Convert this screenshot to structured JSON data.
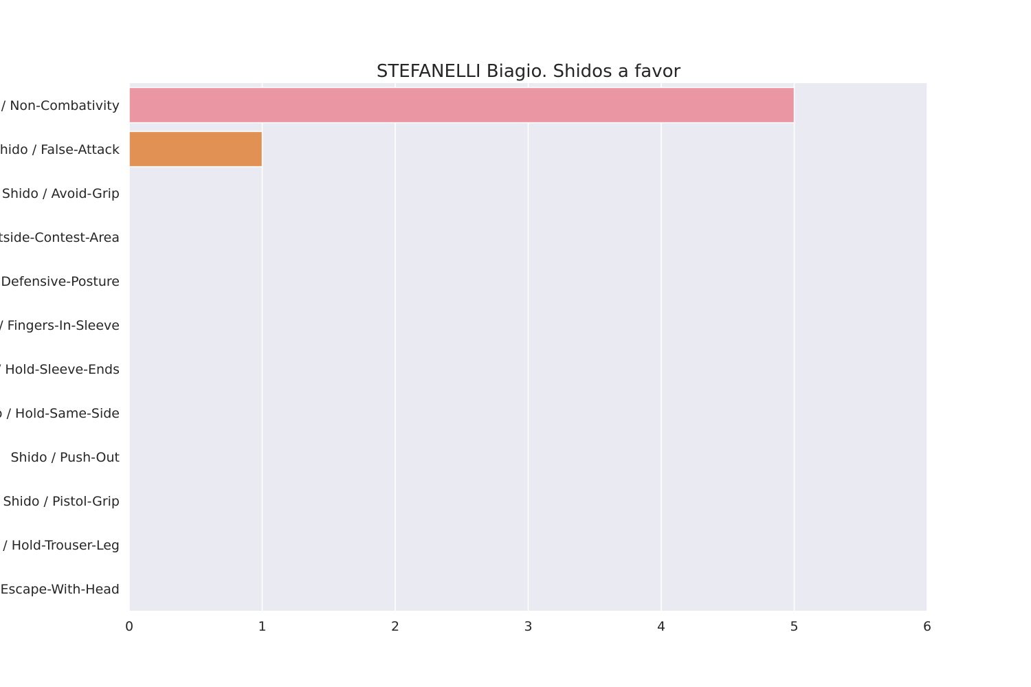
{
  "chart_data": {
    "type": "bar",
    "orientation": "horizontal",
    "title": "STEFANELLI Biagio. Shidos a favor",
    "xlabel": "",
    "ylabel": "",
    "xlim": [
      0,
      6
    ],
    "xticks": [
      0,
      1,
      2,
      3,
      4,
      5,
      6
    ],
    "grid": true,
    "categories": [
      "Shido / Non-Combativity",
      "Shido / False-Attack",
      "Shido / Avoid-Grip",
      "Shido / Outside-Contest-Area",
      "Shido / Defensive-Posture",
      "Shido / Fingers-In-Sleeve",
      "Shido / Hold-Sleeve-Ends",
      "Shido / Hold-Same-Side",
      "Shido / Push-Out",
      "Shido / Pistol-Grip",
      "Shido / Hold-Trouser-Leg",
      "Shido / Escape-With-Head"
    ],
    "values": [
      5,
      1,
      0,
      0,
      0,
      0,
      0,
      0,
      0,
      0,
      0,
      0
    ],
    "colors": [
      "#ea96a3",
      "#e19153",
      "#bd9e4a",
      "#9ea841",
      "#71b243",
      "#48b584",
      "#4ab2a4",
      "#4cb0b9",
      "#54acd8",
      "#a0a4e8",
      "#d98fe4",
      "#e98fc8"
    ],
    "background_color": "#eaeaf2",
    "grid_color": "#ffffff"
  }
}
